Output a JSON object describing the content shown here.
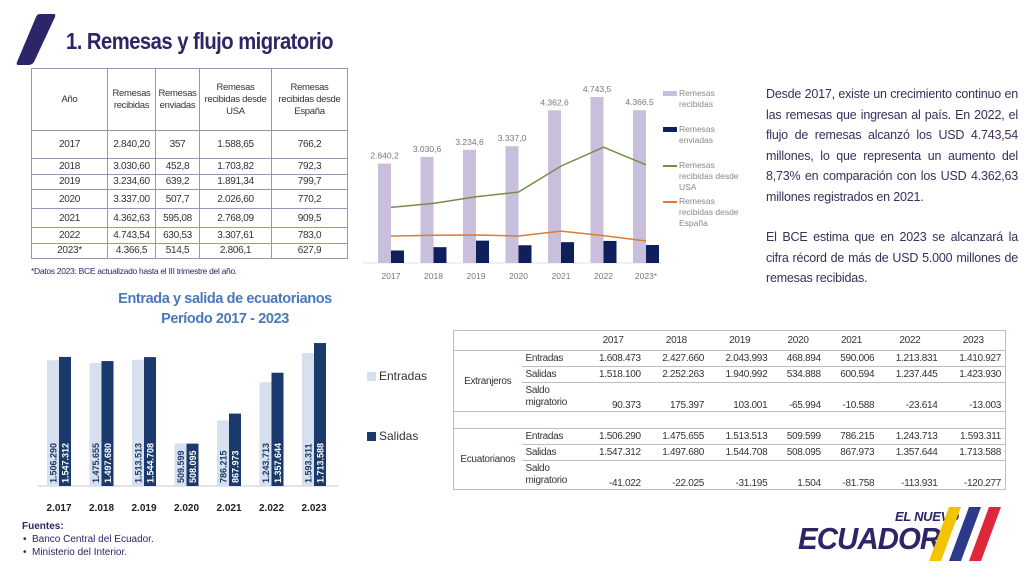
{
  "page": {
    "title": "1. Remesas y flujo migratorio",
    "accent_color": "#2c2567"
  },
  "remesas_table": {
    "headers": [
      "Año",
      "Remesas recibidas",
      "Remesas enviadas",
      "Remesas recibidas desde USA",
      "Remesas recibidas desde España"
    ],
    "rows": [
      [
        "2017",
        "2.840,20",
        "357",
        "1.588,65",
        "766,2"
      ],
      [
        "2018",
        "3.030,60",
        "452,8",
        "1.703,82",
        "792,3"
      ],
      [
        "2019",
        "3.234,60",
        "639,2",
        "1.891,34",
        "799,7"
      ],
      [
        "2020",
        "3.337,00",
        "507,7",
        "2.026,60",
        "770,2"
      ],
      [
        "2021",
        "4.362,63",
        "595,08",
        "2.768,09",
        "909,5"
      ],
      [
        "2022",
        "4.743,54",
        "630,53",
        "3.307,61",
        "783,0"
      ],
      [
        "2023*",
        "4.366,5",
        "514,5",
        "2.806,1",
        "627,9"
      ]
    ],
    "note": "*Datos 2023: BCE actualizado hasta el III trimestre del año."
  },
  "chart_data": [
    {
      "type": "bar",
      "title": "",
      "categories": [
        "2017",
        "2018",
        "2019",
        "2020",
        "2021",
        "2022",
        "2023*"
      ],
      "series": [
        {
          "name": "Remesas recibidas",
          "kind": "bar",
          "color": "#c9bfdc",
          "values": [
            2840.2,
            3030.6,
            3234.6,
            3337.0,
            4362.6,
            4743.5,
            4366.5
          ],
          "labels": [
            "2.840,2",
            "3.030,6",
            "3.234,6",
            "3.337,0",
            "4.362,6",
            "4.743,5",
            "4.366,5"
          ]
        },
        {
          "name": "Remesas enviadas",
          "kind": "bar",
          "color": "#0f1f5c",
          "values": [
            357,
            452.8,
            639.2,
            507.7,
            595.08,
            630.53,
            514.5
          ]
        },
        {
          "name": "Remesas recibidas desde USA",
          "kind": "line",
          "color": "#7a8c4a",
          "values": [
            1588.65,
            1703.82,
            1891.34,
            2026.6,
            2768.09,
            3307.61,
            2806.1
          ]
        },
        {
          "name": "Remesas recibidas desde España",
          "kind": "line",
          "color": "#e07b2a",
          "values": [
            766.2,
            792.3,
            799.7,
            770.2,
            909.5,
            783.0,
            627.9
          ]
        }
      ],
      "ylim": [
        0,
        4800
      ],
      "grid": false,
      "legend": "right"
    },
    {
      "type": "bar",
      "title": "Entrada y salida de ecuatorianos",
      "subtitle": "Período 2017 - 2023",
      "categories": [
        "2.017",
        "2.018",
        "2.019",
        "2.020",
        "2.021",
        "2.022",
        "2.023"
      ],
      "series": [
        {
          "name": "Entradas",
          "color": "#d6e0ee",
          "values": [
            1506290,
            1475655,
            1513513,
            509599,
            786215,
            1243713,
            1593311
          ],
          "labels": [
            "1.506.290",
            "1.475.655",
            "1.513.513",
            "509.599",
            "786.215",
            "1.243.713",
            "1.593.311"
          ]
        },
        {
          "name": "Salidas",
          "color": "#1a3a6b",
          "values": [
            1547312,
            1497680,
            1544708,
            508095,
            867973,
            1357644,
            1713588
          ],
          "labels": [
            "1.547.312",
            "1.497.680",
            "1.544.708",
            "508.095",
            "867.973",
            "1.357.644",
            "1.713.588"
          ]
        }
      ],
      "ylim": [
        0,
        1750000
      ],
      "grid": false,
      "legend": "right"
    }
  ],
  "rem_chart_legend": [
    {
      "label": "Remesas recibidas",
      "kind": "swatch",
      "color": "#c9bfdc"
    },
    {
      "label": "Remesas enviadas",
      "kind": "swatch",
      "color": "#0f1f5c"
    },
    {
      "label": "Remesas recibidas desde USA",
      "kind": "line",
      "color": "#7a8c4a"
    },
    {
      "label": "Remesas recibidas desde España",
      "kind": "line",
      "color": "#e07b2a"
    }
  ],
  "summary": {
    "p1": "Desde 2017, existe un crecimiento continuo en las remesas que ingresan al país. En 2022, el flujo de remesas alcanzó los USD 4.743,54 millones, lo que representa un aumento del 8,73% en comparación con los USD 4.362,63 millones registrados en 2021.",
    "p2": "El BCE estima que en 2023 se alcanzará la cifra récord de más de USD 5.000 millones de remesas recibidas."
  },
  "migration": {
    "title": "Entrada y salida de ecuatorianos",
    "subtitle": "Período 2017 - 2023",
    "legend": {
      "entradas": "Entradas",
      "salidas": "Salidas"
    }
  },
  "migration_table": {
    "years": [
      "2017",
      "2018",
      "2019",
      "2020",
      "2021",
      "2022",
      "2023"
    ],
    "groups": [
      {
        "name": "Extranjeros",
        "rows": [
          {
            "label": "Entradas",
            "values": [
              "1.608.473",
              "2.427.660",
              "2.043.993",
              "468.894",
              "590.006",
              "1.213.831",
              "1.410.927"
            ]
          },
          {
            "label": "Salidas",
            "values": [
              "1.518.100",
              "2.252.263",
              "1.940.992",
              "534.888",
              "600.594",
              "1.237.445",
              "1.423.930"
            ]
          },
          {
            "label": "Saldo migratorio",
            "values": [
              "90.373",
              "175.397",
              "103.001",
              "-65.994",
              "-10.588",
              "-23.614",
              "-13.003"
            ]
          }
        ]
      },
      {
        "name": "Ecuatorianos",
        "rows": [
          {
            "label": "Entradas",
            "values": [
              "1.506.290",
              "1.475.655",
              "1.513.513",
              "509.599",
              "786.215",
              "1.243.713",
              "1.593.311"
            ]
          },
          {
            "label": "Salidas",
            "values": [
              "1.547.312",
              "1.497.680",
              "1.544.708",
              "508.095",
              "867.973",
              "1.357.644",
              "1.713.588"
            ]
          },
          {
            "label": "Saldo migratorio",
            "values": [
              "-41.022",
              "-22.025",
              "-31.195",
              "1.504",
              "-81.758",
              "-113.931",
              "-120.277"
            ]
          }
        ]
      }
    ]
  },
  "sources": {
    "title": "Fuentes:",
    "items": [
      "Banco Central del Ecuador.",
      "Ministerio del Interior."
    ]
  },
  "logo": {
    "top": "EL NUEVO",
    "main": "ECUADOR",
    "stripe_colors": [
      "#f5c400",
      "#2c3a8c",
      "#e0263a"
    ]
  }
}
